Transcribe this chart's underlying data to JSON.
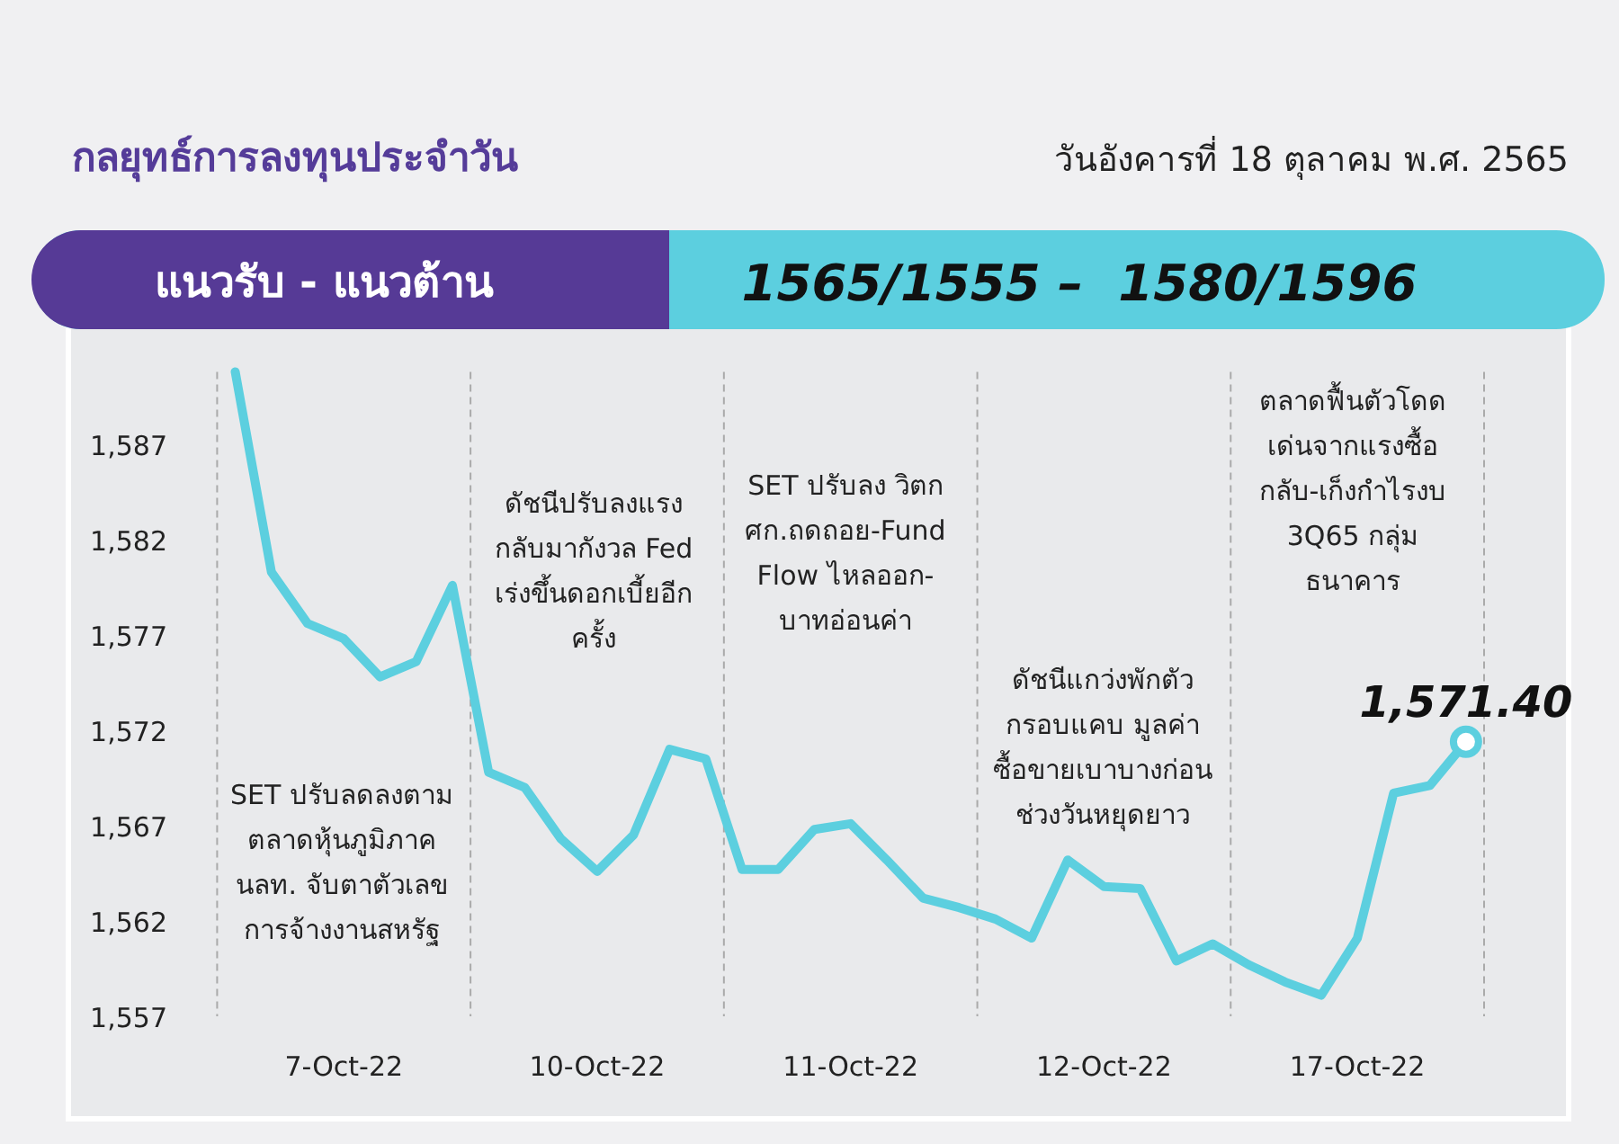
{
  "chart_data": {
    "type": "line",
    "title": "กลยุทธ์การลงทุนประจำวัน",
    "subtitle": "วันอังคารที่ 18 ตุลาคม พ.ศ. 2565",
    "annotations": [
      "แนวรับ - แนวต้าน",
      "1565/1555 –  1580/1596",
      "SET ปรับลดลงตาม ตลาดหุ้นภูมิภาค นลท. จับตาตัวเลข การจ้างงานสหรัฐ",
      "ดัชนีปรับลงแรง กลับมากังวล Fed เร่งขึ้นดอกเบี้ยอีก ครั้ง",
      "SET ปรับลง วิตก ศก.ถดถอย-Fund Flow ไหลออก- บาทอ่อนค่า",
      "ดัชนีแกว่งพักตัว กรอบแคบ มูลค่า ซื้อขายเบาบางก่อน ช่วงวันหยุดยาว",
      "ตลาดฟื้นตัวโดด เด่นจากแรงซื้อ กลับ-เก็งกำไรงบ 3Q65 กลุ่ม ธนาคาร"
    ],
    "categories": [
      null,
      null,
      null,
      "7-Oct-22",
      null,
      null,
      null,
      null,
      null,
      null,
      "10-Oct-22",
      null,
      null,
      null,
      null,
      null,
      null,
      "11-Oct-22",
      null,
      null,
      null,
      null,
      null,
      null,
      "12-Oct-22",
      null,
      null,
      null,
      null,
      null,
      null,
      "17-Oct-22",
      null,
      null,
      null
    ],
    "ylim": [
      1557,
      1590.8
    ],
    "yticks": [
      {
        "value": 1557,
        "label": "1,557"
      },
      {
        "value": 1562,
        "label": "1,562"
      },
      {
        "value": 1567,
        "label": "1,567"
      },
      {
        "value": 1572,
        "label": "1,572"
      },
      {
        "value": 1577,
        "label": "1,577"
      },
      {
        "value": 1582,
        "label": "1,582"
      },
      {
        "value": 1587,
        "label": "1,587"
      }
    ],
    "series": [
      {
        "color": "#5ccfdf",
        "values": [
          1590.8,
          1580.3,
          1577.6,
          1576.8,
          1574.8,
          1575.6,
          1579.6,
          1569.8,
          1569.0,
          1566.3,
          1564.6,
          1566.5,
          1571.0,
          1570.5,
          1564.7,
          1564.7,
          1566.8,
          1567.1,
          1565.2,
          1563.2,
          1562.7,
          1562.1,
          1561.1,
          1565.2,
          1563.8,
          1563.7,
          1559.9,
          1560.8,
          1559.7,
          1558.8,
          1558.1,
          1561.1,
          1568.7,
          1569.1,
          1571.4
        ],
        "value_labels": [
          null,
          null,
          null,
          null,
          null,
          null,
          null,
          null,
          null,
          null,
          null,
          null,
          null,
          null,
          null,
          null,
          null,
          null,
          null,
          null,
          null,
          null,
          null,
          null,
          null,
          null,
          null,
          null,
          null,
          null,
          null,
          null,
          null,
          null,
          "1,571.40"
        ]
      }
    ]
  }
}
